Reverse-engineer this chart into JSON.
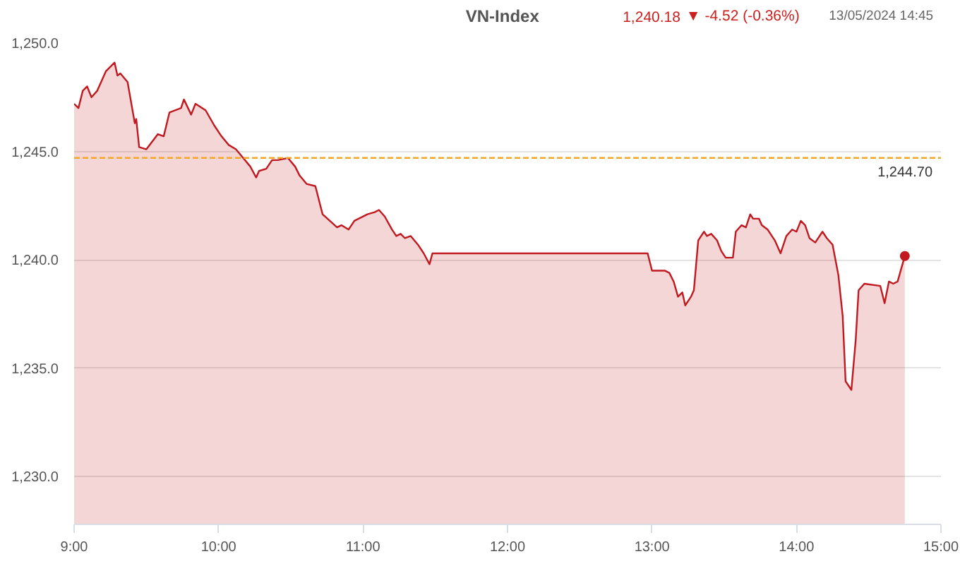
{
  "chart_data": {
    "type": "area",
    "title": "VN-Index",
    "subtitle": "13/05/2024 14:45",
    "annotations": [
      "1,240.18",
      "▼ -4.52 (-0.36%)"
    ],
    "x": [
      9.0,
      9.03,
      9.06,
      9.09,
      9.12,
      9.16,
      9.22,
      9.28,
      9.3,
      9.32,
      9.37,
      9.42,
      9.43,
      9.45,
      9.5,
      9.58,
      9.62,
      9.66,
      9.74,
      9.76,
      9.81,
      9.84,
      9.91,
      9.97,
      10.02,
      10.07,
      10.12,
      10.17,
      10.22,
      10.26,
      10.28,
      10.33,
      10.37,
      10.41,
      10.48,
      10.53,
      10.56,
      10.61,
      10.67,
      10.72,
      10.77,
      10.82,
      10.85,
      10.9,
      10.94,
      11.03,
      11.08,
      11.11,
      11.15,
      11.2,
      11.23,
      11.26,
      11.29,
      11.33,
      11.38,
      11.42,
      11.46,
      11.48,
      12.97,
      13.0,
      13.04,
      13.09,
      13.12,
      13.15,
      13.18,
      13.21,
      13.23,
      13.27,
      13.29,
      13.32,
      13.36,
      13.38,
      13.41,
      13.45,
      13.48,
      13.51,
      13.56,
      13.58,
      13.62,
      13.65,
      13.68,
      13.7,
      13.74,
      13.76,
      13.8,
      13.85,
      13.89,
      13.93,
      13.97,
      14.0,
      14.03,
      14.06,
      14.09,
      14.13,
      14.18,
      14.21,
      14.25,
      14.29,
      14.32,
      14.34,
      14.38,
      14.41,
      14.43,
      14.47,
      14.58,
      14.61,
      14.64,
      14.67,
      14.7,
      14.75
    ],
    "series": [
      {
        "color": "#c0191f",
        "values": [
          1247.2,
          1247.0,
          1247.8,
          1248.0,
          1247.5,
          1247.8,
          1248.7,
          1249.1,
          1248.5,
          1248.6,
          1248.2,
          1246.3,
          1246.5,
          1245.2,
          1245.1,
          1245.8,
          1245.7,
          1246.8,
          1247.0,
          1247.4,
          1246.7,
          1247.2,
          1246.9,
          1246.2,
          1245.7,
          1245.3,
          1245.1,
          1244.7,
          1244.3,
          1243.8,
          1244.1,
          1244.2,
          1244.6,
          1244.6,
          1244.7,
          1244.3,
          1243.9,
          1243.5,
          1243.4,
          1242.1,
          1241.8,
          1241.5,
          1241.6,
          1241.4,
          1241.8,
          1242.1,
          1242.2,
          1242.3,
          1242.0,
          1241.4,
          1241.1,
          1241.2,
          1241.0,
          1241.1,
          1240.7,
          1240.3,
          1239.8,
          1240.3,
          1240.3,
          1239.5,
          1239.5,
          1239.5,
          1239.4,
          1239.0,
          1238.3,
          1238.5,
          1237.9,
          1238.3,
          1238.6,
          1240.9,
          1241.3,
          1241.1,
          1241.2,
          1240.9,
          1240.4,
          1240.1,
          1240.1,
          1241.3,
          1241.6,
          1241.5,
          1242.1,
          1241.9,
          1241.9,
          1241.6,
          1241.4,
          1240.9,
          1240.3,
          1241.1,
          1241.4,
          1241.3,
          1241.8,
          1241.6,
          1241.0,
          1240.8,
          1241.3,
          1241.0,
          1240.7,
          1239.3,
          1237.4,
          1234.4,
          1234.0,
          1236.3,
          1238.6,
          1238.9,
          1238.8,
          1238.0,
          1239.0,
          1238.9,
          1239.0,
          1240.18
        ]
      }
    ],
    "xlim": [
      9,
      15
    ],
    "xticks": [
      {
        "value": 9,
        "label": "9:00"
      },
      {
        "value": 10,
        "label": "10:00"
      },
      {
        "value": 11,
        "label": "11:00"
      },
      {
        "value": 12,
        "label": "12:00"
      },
      {
        "value": 13,
        "label": "13:00"
      },
      {
        "value": 14,
        "label": "14:00"
      },
      {
        "value": 15,
        "label": "15:00"
      }
    ],
    "ylim": [
      1227.8,
      1250
    ],
    "yticks": [
      {
        "value": 1230,
        "label": "1,230.0"
      },
      {
        "value": 1235,
        "label": "1,235.0"
      },
      {
        "value": 1240,
        "label": "1,240.0"
      },
      {
        "value": 1245,
        "label": "1,245.0"
      },
      {
        "value": 1250,
        "label": "1,250.0"
      }
    ],
    "grid": "y",
    "ref_lines": [
      {
        "axis": "y",
        "value": 1244.7,
        "label": "1,244.70",
        "color": "#f5a623",
        "line_style": "dashed"
      }
    ]
  }
}
